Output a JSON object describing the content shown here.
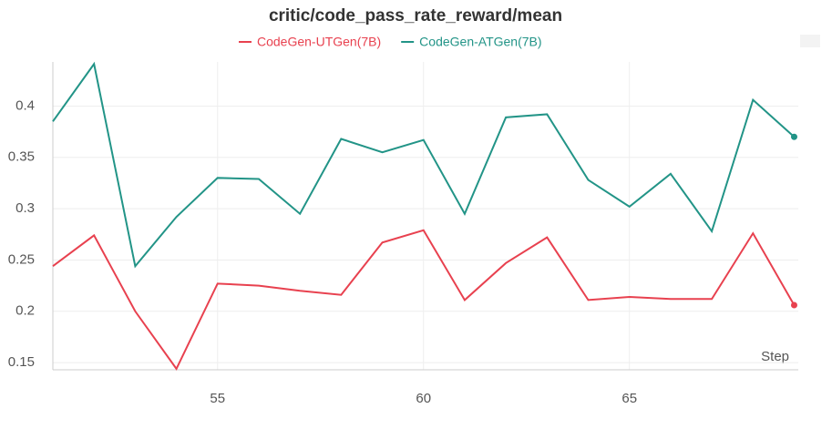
{
  "chart_data": {
    "type": "line",
    "title": "critic/code_pass_rate_reward/mean",
    "x_label": "Step",
    "x": [
      51,
      52,
      53,
      54,
      55,
      56,
      57,
      58,
      59,
      60,
      61,
      62,
      63,
      64,
      65,
      66,
      67,
      68,
      69
    ],
    "series": [
      {
        "name": "CodeGen-UTGen(7B)",
        "color": "#e8414f",
        "values": [
          0.244,
          0.274,
          0.2,
          0.144,
          0.227,
          0.225,
          0.22,
          0.216,
          0.267,
          0.279,
          0.211,
          0.247,
          0.272,
          0.211,
          0.214,
          0.212,
          0.212,
          0.276,
          0.206
        ]
      },
      {
        "name": "CodeGen-ATGen(7B)",
        "color": "#229487",
        "values": [
          0.385,
          0.441,
          0.244,
          0.292,
          0.33,
          0.329,
          0.295,
          0.368,
          0.355,
          0.367,
          0.295,
          0.389,
          0.392,
          0.328,
          0.302,
          0.334,
          0.278,
          0.406,
          0.37
        ]
      }
    ],
    "xlim": [
      51,
      69.1
    ],
    "ylim": [
      0.143,
      0.443
    ],
    "xticks": [
      55,
      60,
      65
    ],
    "yticks": [
      0.15,
      0.2,
      0.25,
      0.3,
      0.35,
      0.4
    ],
    "grid": true
  }
}
